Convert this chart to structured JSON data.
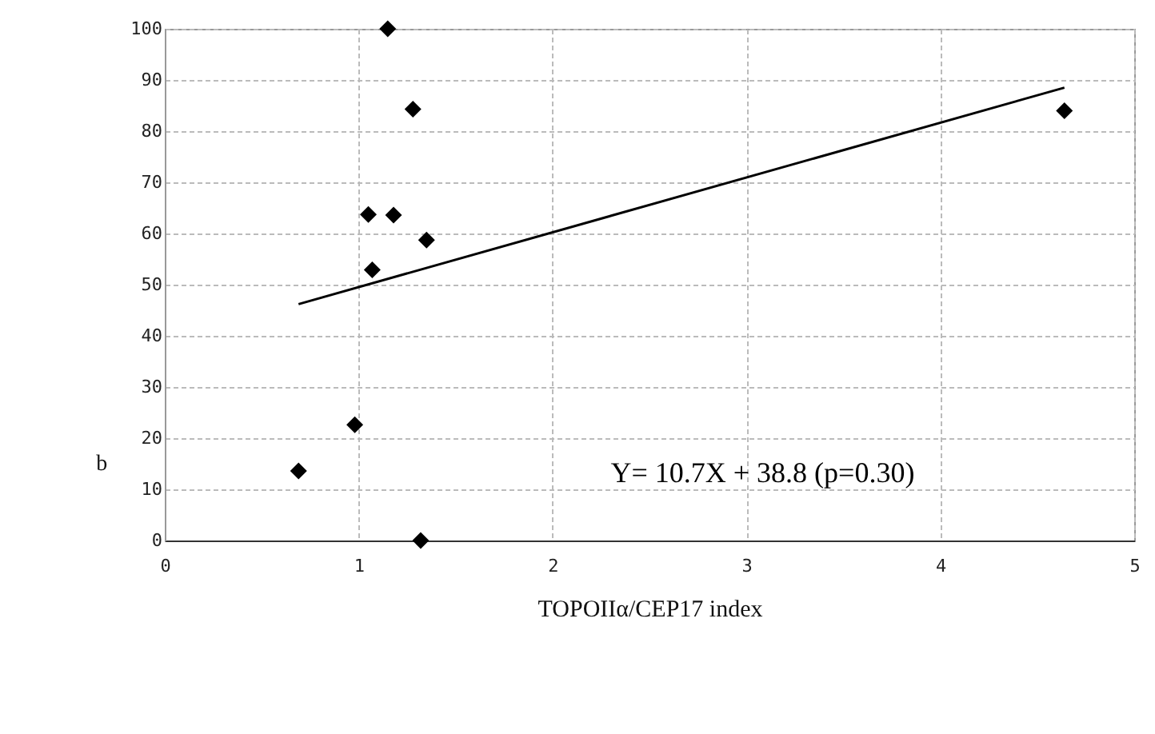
{
  "chart_data": {
    "type": "scatter",
    "xlabel": "TOPOIIα/CEP17 index",
    "ylabel": "b",
    "xlim": [
      0,
      5
    ],
    "xticks": [
      0,
      1,
      2,
      3,
      4,
      5
    ],
    "ylim": [
      0,
      100
    ],
    "yticks": [
      0,
      10,
      20,
      30,
      40,
      50,
      60,
      70,
      80,
      90,
      100
    ],
    "grid": true,
    "series": [
      {
        "color": "#000000",
        "marker": "diamond",
        "x": [
          0.69,
          0.98,
          1.05,
          1.07,
          1.15,
          1.18,
          1.28,
          1.35,
          1.32,
          4.64
        ],
        "values": [
          13.6,
          22.6,
          63.7,
          52.9,
          100,
          63.6,
          84.3,
          58.7,
          0,
          84
        ]
      },
      {
        "type": "line",
        "color": "#000000",
        "marker": "none",
        "line_style": "solid",
        "x": [
          0.69,
          4.64
        ],
        "values": [
          46.2,
          88.5
        ]
      }
    ],
    "annotations": [
      "Y= 10.7X + 38.8 (p=0.30)"
    ]
  }
}
